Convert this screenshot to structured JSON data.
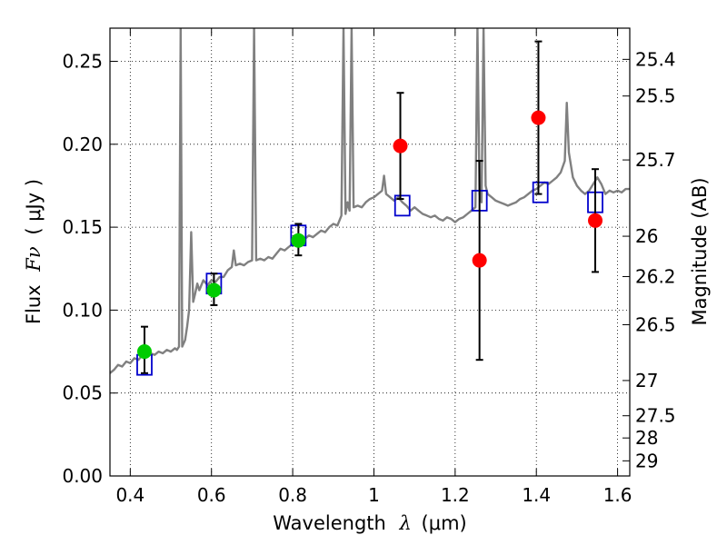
{
  "chart_data": {
    "type": "scatter",
    "xlabel": {
      "prefix": "Wavelength",
      "symbol": "λ",
      "unit": "(μm)"
    },
    "ylabel": {
      "prefix": "Flux",
      "symbol": "Fν",
      "unit": "( μJy )"
    },
    "y2label": "Magnitude (AB)",
    "xlim": [
      0.35,
      1.63
    ],
    "ylim": [
      0.0,
      0.27
    ],
    "grid": true,
    "legend": "none",
    "x_ticks": [
      {
        "value": 0.4,
        "label": "0.4"
      },
      {
        "value": 0.6,
        "label": "0.6"
      },
      {
        "value": 0.8,
        "label": "0.8"
      },
      {
        "value": 1.0,
        "label": "1"
      },
      {
        "value": 1.2,
        "label": "1.2"
      },
      {
        "value": 1.4,
        "label": "1.4"
      },
      {
        "value": 1.6,
        "label": "1.6"
      }
    ],
    "y_ticks": [
      {
        "value": 0.0,
        "label": "0.00"
      },
      {
        "value": 0.05,
        "label": "0.05"
      },
      {
        "value": 0.1,
        "label": "0.10"
      },
      {
        "value": 0.15,
        "label": "0.15"
      },
      {
        "value": 0.2,
        "label": "0.20"
      },
      {
        "value": 0.25,
        "label": "0.25"
      }
    ],
    "y2_ticks": [
      {
        "value": 25.4,
        "label": "25.4"
      },
      {
        "value": 25.5,
        "label": "25.5"
      },
      {
        "value": 25.7,
        "label": "25.7"
      },
      {
        "value": 26.0,
        "label": "26"
      },
      {
        "value": 26.2,
        "label": "26.2"
      },
      {
        "value": 26.5,
        "label": "26.5"
      },
      {
        "value": 27.0,
        "label": "27"
      },
      {
        "value": 27.5,
        "label": "27.5"
      },
      {
        "value": 28.0,
        "label": "28"
      },
      {
        "value": 29.0,
        "label": "29"
      }
    ],
    "series": [
      {
        "kind": "spectrum",
        "color": "#808080",
        "points": [
          [
            0.35,
            0.062
          ],
          [
            0.36,
            0.064
          ],
          [
            0.37,
            0.067
          ],
          [
            0.38,
            0.066
          ],
          [
            0.39,
            0.069
          ],
          [
            0.4,
            0.068
          ],
          [
            0.41,
            0.071
          ],
          [
            0.42,
            0.07
          ],
          [
            0.43,
            0.073
          ],
          [
            0.44,
            0.072
          ],
          [
            0.45,
            0.074
          ],
          [
            0.46,
            0.073
          ],
          [
            0.47,
            0.075
          ],
          [
            0.48,
            0.074
          ],
          [
            0.49,
            0.076
          ],
          [
            0.5,
            0.075
          ],
          [
            0.51,
            0.077
          ],
          [
            0.515,
            0.076
          ],
          [
            0.52,
            0.078
          ],
          [
            0.524,
            0.27
          ],
          [
            0.528,
            0.078
          ],
          [
            0.535,
            0.082
          ],
          [
            0.54,
            0.09
          ],
          [
            0.545,
            0.1
          ],
          [
            0.55,
            0.147
          ],
          [
            0.555,
            0.105
          ],
          [
            0.56,
            0.11
          ],
          [
            0.565,
            0.116
          ],
          [
            0.57,
            0.112
          ],
          [
            0.58,
            0.118
          ],
          [
            0.59,
            0.115
          ],
          [
            0.6,
            0.118
          ],
          [
            0.61,
            0.117
          ],
          [
            0.62,
            0.12
          ],
          [
            0.63,
            0.12
          ],
          [
            0.64,
            0.124
          ],
          [
            0.65,
            0.126
          ],
          [
            0.655,
            0.136
          ],
          [
            0.66,
            0.127
          ],
          [
            0.67,
            0.128
          ],
          [
            0.68,
            0.127
          ],
          [
            0.69,
            0.129
          ],
          [
            0.7,
            0.13
          ],
          [
            0.705,
            0.27
          ],
          [
            0.71,
            0.13
          ],
          [
            0.72,
            0.131
          ],
          [
            0.73,
            0.13
          ],
          [
            0.74,
            0.132
          ],
          [
            0.75,
            0.131
          ],
          [
            0.76,
            0.134
          ],
          [
            0.77,
            0.137
          ],
          [
            0.78,
            0.136
          ],
          [
            0.79,
            0.138
          ],
          [
            0.8,
            0.14
          ],
          [
            0.81,
            0.139
          ],
          [
            0.82,
            0.142
          ],
          [
            0.83,
            0.143
          ],
          [
            0.84,
            0.145
          ],
          [
            0.85,
            0.144
          ],
          [
            0.86,
            0.146
          ],
          [
            0.87,
            0.148
          ],
          [
            0.88,
            0.147
          ],
          [
            0.89,
            0.15
          ],
          [
            0.9,
            0.152
          ],
          [
            0.91,
            0.151
          ],
          [
            0.92,
            0.157
          ],
          [
            0.925,
            0.27
          ],
          [
            0.93,
            0.158
          ],
          [
            0.935,
            0.165
          ],
          [
            0.94,
            0.16
          ],
          [
            0.945,
            0.27
          ],
          [
            0.95,
            0.162
          ],
          [
            0.96,
            0.163
          ],
          [
            0.97,
            0.162
          ],
          [
            0.98,
            0.165
          ],
          [
            0.99,
            0.167
          ],
          [
            1.0,
            0.168
          ],
          [
            1.01,
            0.17
          ],
          [
            1.02,
            0.172
          ],
          [
            1.025,
            0.181
          ],
          [
            1.03,
            0.17
          ],
          [
            1.04,
            0.168
          ],
          [
            1.05,
            0.166
          ],
          [
            1.06,
            0.168
          ],
          [
            1.07,
            0.165
          ],
          [
            1.08,
            0.163
          ],
          [
            1.09,
            0.16
          ],
          [
            1.1,
            0.162
          ],
          [
            1.11,
            0.16
          ],
          [
            1.12,
            0.158
          ],
          [
            1.13,
            0.157
          ],
          [
            1.14,
            0.156
          ],
          [
            1.15,
            0.157
          ],
          [
            1.16,
            0.155
          ],
          [
            1.17,
            0.154
          ],
          [
            1.18,
            0.156
          ],
          [
            1.19,
            0.155
          ],
          [
            1.2,
            0.153
          ],
          [
            1.21,
            0.155
          ],
          [
            1.22,
            0.156
          ],
          [
            1.23,
            0.158
          ],
          [
            1.24,
            0.16
          ],
          [
            1.25,
            0.162
          ],
          [
            1.255,
            0.27
          ],
          [
            1.26,
            0.17
          ],
          [
            1.265,
            0.165
          ],
          [
            1.27,
            0.27
          ],
          [
            1.275,
            0.175
          ],
          [
            1.28,
            0.17
          ],
          [
            1.29,
            0.168
          ],
          [
            1.3,
            0.166
          ],
          [
            1.31,
            0.165
          ],
          [
            1.32,
            0.164
          ],
          [
            1.33,
            0.163
          ],
          [
            1.34,
            0.164
          ],
          [
            1.35,
            0.165
          ],
          [
            1.36,
            0.167
          ],
          [
            1.37,
            0.168
          ],
          [
            1.38,
            0.17
          ],
          [
            1.39,
            0.172
          ],
          [
            1.4,
            0.173
          ],
          [
            1.41,
            0.175
          ],
          [
            1.42,
            0.177
          ],
          [
            1.43,
            0.176
          ],
          [
            1.44,
            0.178
          ],
          [
            1.45,
            0.18
          ],
          [
            1.46,
            0.183
          ],
          [
            1.47,
            0.19
          ],
          [
            1.475,
            0.225
          ],
          [
            1.48,
            0.195
          ],
          [
            1.49,
            0.18
          ],
          [
            1.5,
            0.175
          ],
          [
            1.51,
            0.172
          ],
          [
            1.52,
            0.17
          ],
          [
            1.53,
            0.172
          ],
          [
            1.54,
            0.176
          ],
          [
            1.55,
            0.18
          ],
          [
            1.56,
            0.176
          ],
          [
            1.57,
            0.17
          ],
          [
            1.58,
            0.172
          ],
          [
            1.59,
            0.171
          ],
          [
            1.6,
            0.172
          ],
          [
            1.61,
            0.171
          ],
          [
            1.62,
            0.173
          ],
          [
            1.63,
            0.173
          ]
        ]
      },
      {
        "kind": "model_bands",
        "marker": "open-square",
        "color": "#0000cc",
        "points": [
          {
            "x": 0.435,
            "y": 0.067
          },
          {
            "x": 0.606,
            "y": 0.116
          },
          {
            "x": 0.814,
            "y": 0.145
          },
          {
            "x": 1.07,
            "y": 0.163
          },
          {
            "x": 1.26,
            "y": 0.166
          },
          {
            "x": 1.41,
            "y": 0.171
          },
          {
            "x": 1.545,
            "y": 0.165
          }
        ]
      },
      {
        "kind": "detections_optical",
        "marker": "filled-circle",
        "color": "#00cc00",
        "points": [
          {
            "x": 0.435,
            "y": 0.075,
            "ylo": 0.062,
            "yhi": 0.09
          },
          {
            "x": 0.606,
            "y": 0.112,
            "ylo": 0.103,
            "yhi": 0.122
          },
          {
            "x": 0.814,
            "y": 0.142,
            "ylo": 0.133,
            "yhi": 0.152
          }
        ]
      },
      {
        "kind": "detections_nir",
        "marker": "filled-circle",
        "color": "#ff0000",
        "points": [
          {
            "x": 1.065,
            "y": 0.199,
            "ylo": 0.167,
            "yhi": 0.231
          },
          {
            "x": 1.26,
            "y": 0.13,
            "ylo": 0.07,
            "yhi": 0.19
          },
          {
            "x": 1.405,
            "y": 0.216,
            "ylo": 0.17,
            "yhi": 0.262
          },
          {
            "x": 1.545,
            "y": 0.154,
            "ylo": 0.123,
            "yhi": 0.185
          }
        ]
      }
    ]
  }
}
